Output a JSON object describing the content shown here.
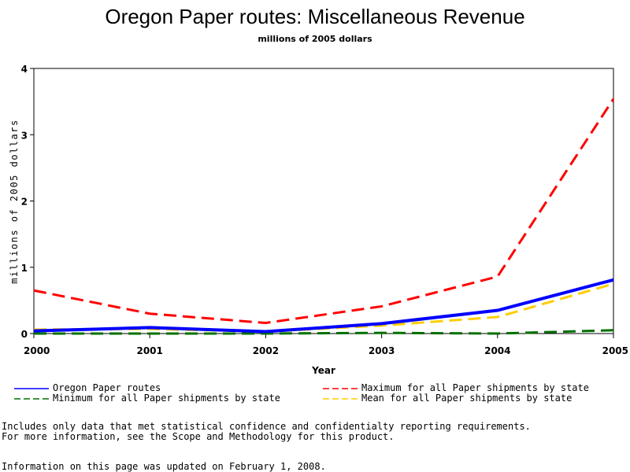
{
  "header": {
    "title": "Oregon Paper routes: Miscellaneous Revenue",
    "subtitle": "millions of 2005 dollars"
  },
  "chart_data": {
    "type": "line",
    "title": "Oregon Paper routes: Miscellaneous Revenue",
    "subtitle": "millions of 2005 dollars",
    "xlabel": "Year",
    "ylabel": "millions of 2005 dollars",
    "x": [
      2000,
      2001,
      2002,
      2003,
      2004,
      2005
    ],
    "x_tick_labels": [
      "2000",
      "2001",
      "2002",
      "2003",
      "2004",
      "2005"
    ],
    "y_tick_labels": [
      "0",
      "1",
      "2",
      "3",
      "4"
    ],
    "y_ticks": [
      0,
      1,
      2,
      3,
      4
    ],
    "xlim": [
      2000,
      2005
    ],
    "ylim": [
      0,
      4
    ],
    "grid": false,
    "legend_position": "bottom",
    "series": [
      {
        "name": "Oregon Paper routes",
        "color": "#0000ff",
        "style": "solid",
        "values": [
          0.04,
          0.09,
          0.03,
          0.15,
          0.35,
          0.81
        ]
      },
      {
        "name": "Maximum for all Paper shipments by state",
        "color": "#ff0000",
        "style": "dashed",
        "values": [
          0.65,
          0.3,
          0.16,
          0.41,
          0.86,
          3.54
        ]
      },
      {
        "name": "Minimum for all Paper shipments by state",
        "color": "#007000",
        "style": "dashed",
        "values": [
          0.0,
          0.0,
          0.0,
          0.01,
          0.0,
          0.05
        ]
      },
      {
        "name": "Mean for all Paper shipments by state",
        "color": "#ffcc00",
        "style": "dashed",
        "values": [
          0.06,
          0.07,
          0.03,
          0.12,
          0.25,
          0.75
        ]
      }
    ]
  },
  "footer": {
    "note_line1": "Includes only data that met statistical confidence and confidentialty reporting requirements.",
    "note_line2": "For more information, see the Scope and Methodology for this product.",
    "updated": "Information on this page was updated on February 1, 2008."
  }
}
